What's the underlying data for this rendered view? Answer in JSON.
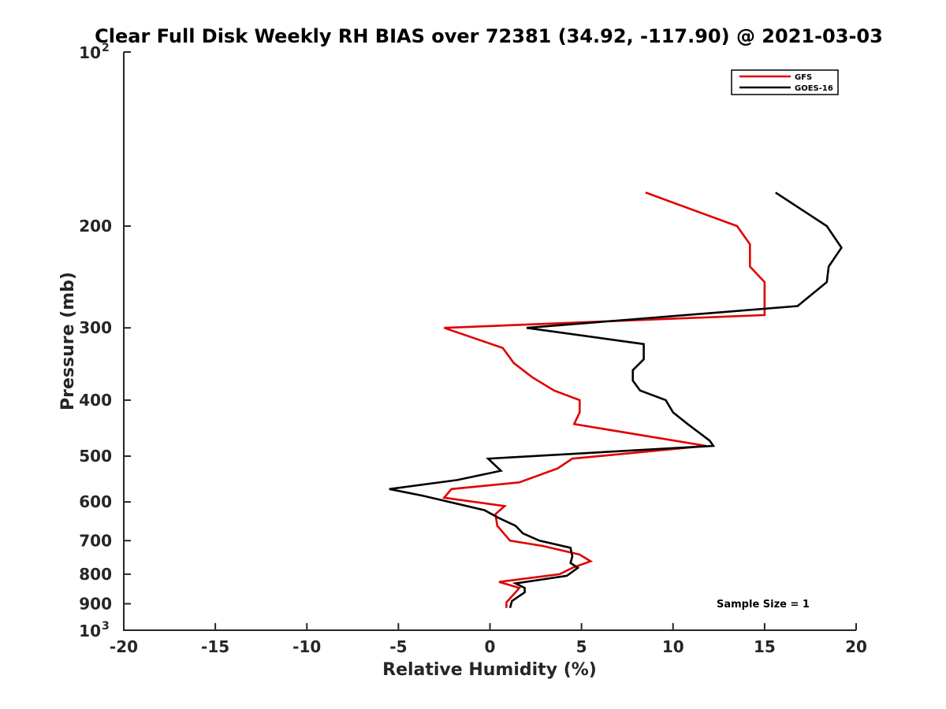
{
  "chart_data": {
    "type": "line",
    "title": "Clear Full Disk Weekly RH BIAS over 72381 (34.92, -117.90) @ 2021-03-03",
    "xlabel": "Relative Humidity (%)",
    "ylabel": "Pressure (mb)",
    "xlim": [
      -20,
      20
    ],
    "ylim": [
      100,
      1000
    ],
    "yscale": "log",
    "y_inverted": true,
    "grid": false,
    "legend_position": "top-right",
    "x_ticks": [
      {
        "value": -20,
        "label": "-20"
      },
      {
        "value": -15,
        "label": "-15"
      },
      {
        "value": -10,
        "label": "-10"
      },
      {
        "value": -5,
        "label": "-5"
      },
      {
        "value": 0,
        "label": "0"
      },
      {
        "value": 5,
        "label": "5"
      },
      {
        "value": 10,
        "label": "10"
      },
      {
        "value": 15,
        "label": "15"
      },
      {
        "value": 20,
        "label": "20"
      }
    ],
    "y_ticks": [
      {
        "value": 100,
        "label": "10",
        "sup": "2"
      },
      {
        "value": 200,
        "label": "200"
      },
      {
        "value": 300,
        "label": "300"
      },
      {
        "value": 400,
        "label": "400"
      },
      {
        "value": 500,
        "label": "500"
      },
      {
        "value": 600,
        "label": "600"
      },
      {
        "value": 700,
        "label": "700"
      },
      {
        "value": 800,
        "label": "800"
      },
      {
        "value": 900,
        "label": "900"
      },
      {
        "value": 1000,
        "label": "10",
        "sup": "3"
      }
    ],
    "series": [
      {
        "name": "GFS",
        "color": "#e00000",
        "points": [
          [
            8.5,
            175
          ],
          [
            13.5,
            200
          ],
          [
            14.2,
            215
          ],
          [
            14.2,
            235
          ],
          [
            15.0,
            250
          ],
          [
            15.0,
            285
          ],
          [
            -2.5,
            300
          ],
          [
            0.7,
            325
          ],
          [
            1.3,
            345
          ],
          [
            2.3,
            365
          ],
          [
            3.5,
            385
          ],
          [
            4.9,
            400
          ],
          [
            4.9,
            420
          ],
          [
            4.6,
            440
          ],
          [
            11.8,
            480
          ],
          [
            4.5,
            505
          ],
          [
            3.7,
            525
          ],
          [
            1.6,
            555
          ],
          [
            -2.1,
            570
          ],
          [
            -2.5,
            590
          ],
          [
            0.8,
            610
          ],
          [
            0.3,
            630
          ],
          [
            0.4,
            660
          ],
          [
            1.1,
            700
          ],
          [
            2.9,
            715
          ],
          [
            4.9,
            740
          ],
          [
            5.5,
            760
          ],
          [
            4.5,
            780
          ],
          [
            3.8,
            800
          ],
          [
            0.5,
            825
          ],
          [
            1.6,
            845
          ],
          [
            1.4,
            860
          ],
          [
            0.9,
            895
          ],
          [
            0.9,
            915
          ]
        ]
      },
      {
        "name": "GOES-16",
        "color": "#000000",
        "points": [
          [
            15.6,
            175
          ],
          [
            18.4,
            200
          ],
          [
            19.2,
            218
          ],
          [
            18.5,
            235
          ],
          [
            18.4,
            250
          ],
          [
            16.8,
            275
          ],
          [
            2.0,
            300
          ],
          [
            8.4,
            320
          ],
          [
            8.4,
            340
          ],
          [
            7.8,
            355
          ],
          [
            7.8,
            370
          ],
          [
            8.2,
            385
          ],
          [
            9.6,
            400
          ],
          [
            10.0,
            420
          ],
          [
            10.8,
            440
          ],
          [
            12.0,
            470
          ],
          [
            12.2,
            480
          ],
          [
            -0.1,
            505
          ],
          [
            0.6,
            530
          ],
          [
            -1.8,
            550
          ],
          [
            -5.5,
            570
          ],
          [
            -3.7,
            585
          ],
          [
            -0.3,
            620
          ],
          [
            0.5,
            640
          ],
          [
            1.4,
            660
          ],
          [
            1.8,
            680
          ],
          [
            2.7,
            700
          ],
          [
            4.4,
            720
          ],
          [
            4.5,
            745
          ],
          [
            4.4,
            765
          ],
          [
            4.8,
            780
          ],
          [
            4.2,
            805
          ],
          [
            1.4,
            830
          ],
          [
            1.9,
            845
          ],
          [
            1.9,
            860
          ],
          [
            1.2,
            890
          ],
          [
            1.1,
            915
          ]
        ]
      }
    ],
    "annotation": "Sample Size = 1"
  }
}
